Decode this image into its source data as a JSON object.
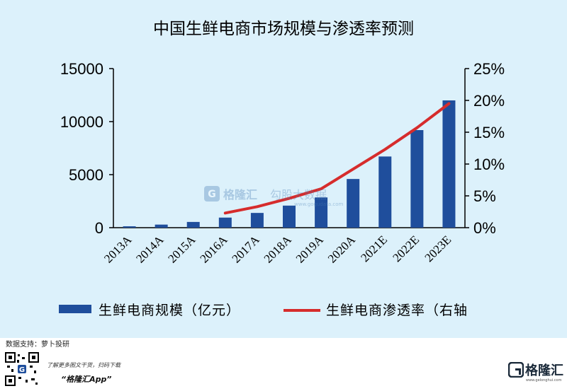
{
  "chart_data": {
    "type": "bar",
    "title": "中国生鲜电商市场规模与渗透率预测",
    "categories": [
      "2013A",
      "2014A",
      "2015A",
      "2016A",
      "2017A",
      "2018A",
      "2019A",
      "2020A",
      "2021E",
      "2022E",
      "2023E"
    ],
    "series": [
      {
        "name": "生鲜电商规模（亿元）",
        "type": "bar",
        "axis": "left",
        "color": "#1f4e9c",
        "values": [
          130,
          290,
          540,
          950,
          1390,
          2080,
          2850,
          4590,
          6710,
          9200,
          12000
        ]
      },
      {
        "name": "生鲜电商渗透率（右轴",
        "type": "line",
        "axis": "right",
        "color": "#d62c2c",
        "values": [
          null,
          null,
          null,
          0.023,
          0.033,
          0.046,
          0.061,
          0.092,
          0.123,
          0.157,
          0.195
        ]
      }
    ],
    "y_left": {
      "ticks": [
        0,
        5000,
        10000,
        15000
      ],
      "tick_labels": [
        "0",
        "5000",
        "10000",
        "15000"
      ],
      "ylim": [
        0,
        15000
      ]
    },
    "y_right": {
      "ticks": [
        0,
        0.05,
        0.1,
        0.15,
        0.2,
        0.25
      ],
      "tick_labels": [
        "0%",
        "5%",
        "10%",
        "15%",
        "20%",
        "25%"
      ],
      "ylim": [
        0,
        0.25
      ]
    },
    "grid": false,
    "legend_position": "bottom"
  },
  "source_label": "数据支持：萝卜投研",
  "promo_text": "了解更多图文干货，扫码下载",
  "app_name": "“格隆汇App”",
  "brand_name": "格隆汇",
  "brand_url": "www.gelonghui.com",
  "watermark_name": "格隆汇",
  "watermark_cn": "勾股大数据",
  "watermark_url": "www.gogudata.com",
  "colors": {
    "background": "#dcf1fb",
    "bar": "#1f4e9c",
    "line": "#d62c2c",
    "axis": "#000000"
  }
}
